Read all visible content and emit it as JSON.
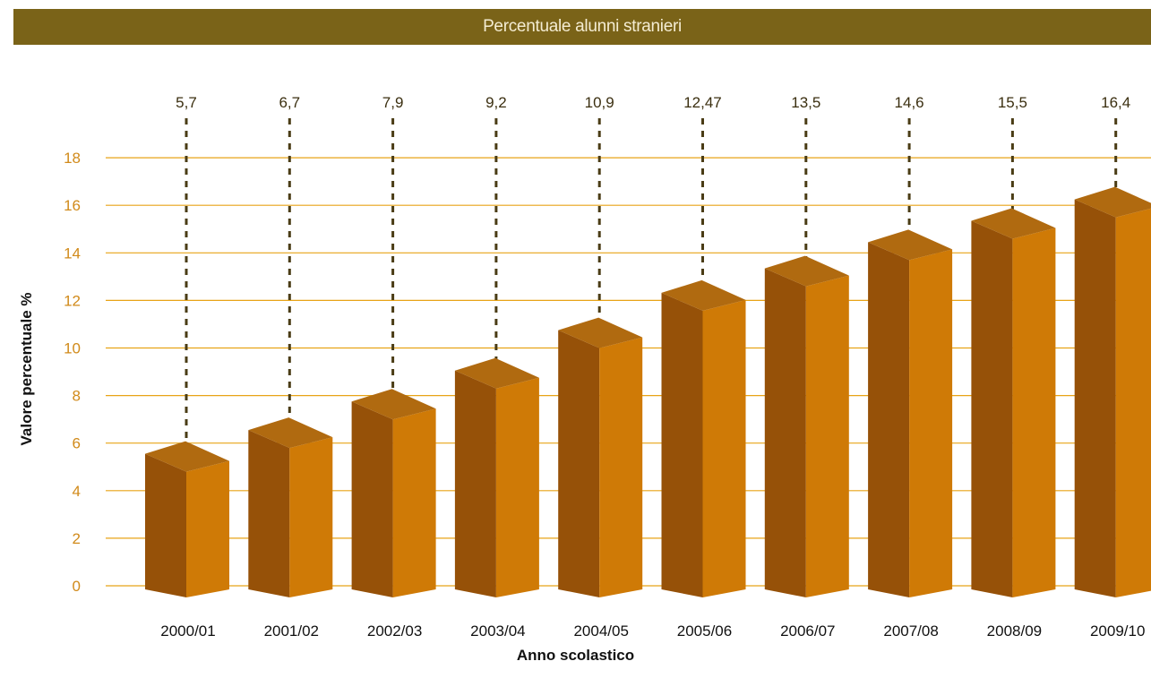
{
  "chart_data": {
    "type": "bar",
    "title": "Percentuale alunni stranieri",
    "xlabel": "Anno scolastico",
    "ylabel": "Valore percentuale %",
    "categories": [
      "2000/01",
      "2001/02",
      "2002/03",
      "2003/04",
      "2004/05",
      "2005/06",
      "2006/07",
      "2007/08",
      "2008/09",
      "2009/10"
    ],
    "values": [
      5.7,
      6.7,
      7.9,
      9.2,
      10.9,
      12.47,
      13.5,
      14.6,
      15.5,
      16.4
    ],
    "data_labels": [
      "5,7",
      "6,7",
      "7,9",
      "9,2",
      "10,9",
      "12,47",
      "13,5",
      "14,6",
      "15,5",
      "16,4"
    ],
    "yticks": [
      0,
      2,
      4,
      6,
      8,
      10,
      12,
      14,
      16,
      18
    ],
    "ylim": [
      0,
      18
    ],
    "grid": true,
    "bar_style": "3d",
    "colors": {
      "title_bar": "#7a6318",
      "title_text": "#f4ecd2",
      "bar_front": "#cf7a06",
      "bar_side": "#965108",
      "bar_top": "#b06a10",
      "grid": "#e8a417",
      "tick_text": "#d18a1a",
      "label_text": "#3b2f10",
      "dash": "#4a3c15"
    }
  }
}
